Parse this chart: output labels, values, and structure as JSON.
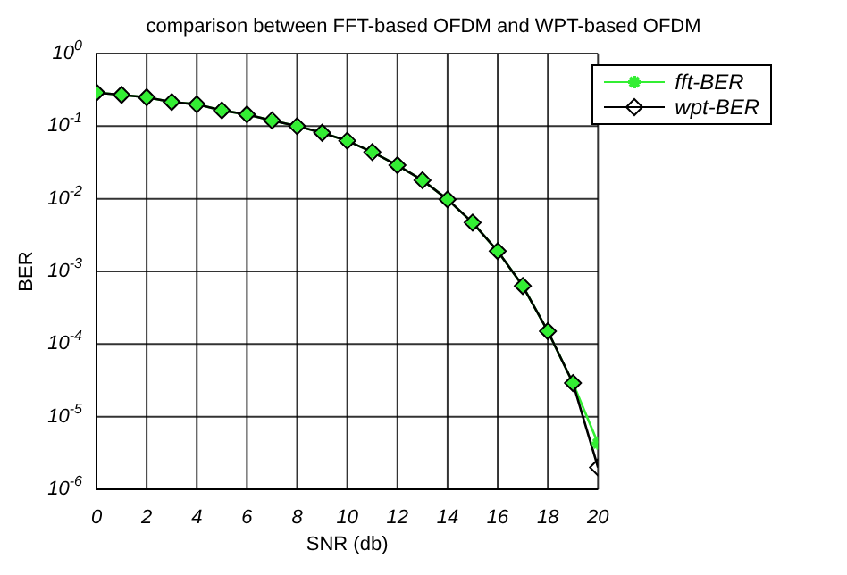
{
  "chart_data": {
    "type": "line",
    "title": "comparison between FFT-based OFDM and WPT-based OFDM",
    "xlabel": "SNR (db)",
    "ylabel": "BER",
    "x": [
      0,
      1,
      2,
      3,
      4,
      5,
      6,
      7,
      8,
      9,
      10,
      11,
      12,
      13,
      14,
      15,
      16,
      17,
      18,
      19,
      20
    ],
    "series": [
      {
        "name": "fft-BER",
        "color": "#33ee33",
        "marker": "cross",
        "values": [
          0.29,
          0.27,
          0.25,
          0.215,
          0.2,
          0.165,
          0.145,
          0.12,
          0.1,
          0.081,
          0.063,
          0.044,
          0.029,
          0.018,
          0.0098,
          0.0047,
          0.0019,
          0.00063,
          0.00015,
          2.9e-05,
          4.3e-06
        ]
      },
      {
        "name": "wpt-BER",
        "color": "#000000",
        "marker": "diamond",
        "values": [
          0.29,
          0.27,
          0.25,
          0.215,
          0.2,
          0.165,
          0.145,
          0.12,
          0.1,
          0.081,
          0.063,
          0.044,
          0.029,
          0.018,
          0.0098,
          0.0047,
          0.0019,
          0.00063,
          0.00015,
          2.9e-05,
          2e-06
        ]
      }
    ],
    "log": "y",
    "xlim": [
      0,
      20
    ],
    "xticks": [
      0,
      2,
      4,
      6,
      8,
      10,
      12,
      14,
      16,
      18,
      20
    ],
    "ylim": [
      1e-06,
      1
    ],
    "yticks": [
      {
        "value": 1e-06,
        "label": "10$^{-6}$"
      },
      {
        "value": 1e-05,
        "label": "10$^{-5}$"
      },
      {
        "value": 0.0001,
        "label": "10$^{-4}$"
      },
      {
        "value": 0.001,
        "label": "10$^{-3}$"
      },
      {
        "value": 0.01,
        "label": "10$^{-2}$"
      },
      {
        "value": 0.1,
        "label": "10$^{-1}$"
      },
      {
        "value": 1,
        "label": "10$^{0}$"
      }
    ],
    "grid": true,
    "legend": "top right",
    "line_style": "solid"
  }
}
